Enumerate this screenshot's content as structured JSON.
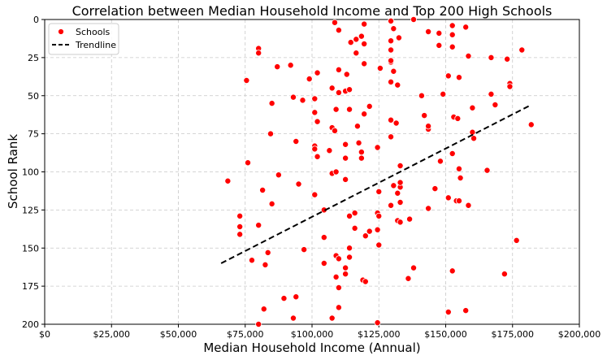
{
  "chart_data": {
    "type": "scatter",
    "title": "Correlation between Median Household Income and Top 200 High Schools",
    "xlabel": "Median Household Income (Annual)",
    "ylabel": "School Rank",
    "xlim": [
      0,
      200000
    ],
    "ylim": [
      200,
      0
    ],
    "y_inverted": true,
    "x_ticks": [
      0,
      25000,
      50000,
      75000,
      100000,
      125000,
      150000,
      175000,
      200000
    ],
    "x_tick_labels": [
      "$0",
      "$25,000",
      "$50,000",
      "$75,000",
      "$100,000",
      "$125,000",
      "$150,000",
      "$175,000",
      "$200,000"
    ],
    "y_ticks": [
      0,
      25,
      50,
      75,
      100,
      125,
      150,
      175,
      200
    ],
    "y_tick_labels": [
      "0",
      "25",
      "50",
      "75",
      "100",
      "125",
      "150",
      "175",
      "200"
    ],
    "grid": true,
    "legend": {
      "position": "top-left",
      "entries": [
        {
          "label": "Schools",
          "marker": "dot",
          "color": "#ff0000"
        },
        {
          "label": "Trendline",
          "marker": "dashed-line",
          "color": "#000000"
        }
      ]
    },
    "colors": {
      "points": "#ff0000",
      "trendline": "#000000"
    },
    "series": [
      {
        "name": "Schools",
        "points": [
          [
            108500,
            2
          ],
          [
            110000,
            7
          ],
          [
            119500,
            3
          ],
          [
            129500,
            1
          ],
          [
            130500,
            6
          ],
          [
            138000,
            0
          ],
          [
            152500,
            4
          ],
          [
            157500,
            5
          ],
          [
            118500,
            11
          ],
          [
            116500,
            13
          ],
          [
            114500,
            15
          ],
          [
            119500,
            16
          ],
          [
            129500,
            14
          ],
          [
            132500,
            12
          ],
          [
            143500,
            8
          ],
          [
            147500,
            9
          ],
          [
            152500,
            10
          ],
          [
            80000,
            19
          ],
          [
            80000,
            22
          ],
          [
            116500,
            22
          ],
          [
            129500,
            20
          ],
          [
            147500,
            17
          ],
          [
            152500,
            18
          ],
          [
            158500,
            24
          ],
          [
            167000,
            25
          ],
          [
            173000,
            26
          ],
          [
            178500,
            20
          ],
          [
            87000,
            31
          ],
          [
            92000,
            30
          ],
          [
            110000,
            33
          ],
          [
            119500,
            29
          ],
          [
            125500,
            32
          ],
          [
            129500,
            28
          ],
          [
            129500,
            27
          ],
          [
            130500,
            34
          ],
          [
            75500,
            40
          ],
          [
            99000,
            39
          ],
          [
            102000,
            35
          ],
          [
            113000,
            36
          ],
          [
            107500,
            45
          ],
          [
            112500,
            47
          ],
          [
            114000,
            46
          ],
          [
            110000,
            48
          ],
          [
            129500,
            41
          ],
          [
            132000,
            43
          ],
          [
            151000,
            37
          ],
          [
            155000,
            38
          ],
          [
            174000,
            42
          ],
          [
            174000,
            44
          ],
          [
            85000,
            55
          ],
          [
            93000,
            51
          ],
          [
            96500,
            53
          ],
          [
            101000,
            52
          ],
          [
            109000,
            59
          ],
          [
            114000,
            59
          ],
          [
            117000,
            70
          ],
          [
            121500,
            57
          ],
          [
            141000,
            50
          ],
          [
            149000,
            49
          ],
          [
            160000,
            58
          ],
          [
            167000,
            49
          ],
          [
            168500,
            56
          ],
          [
            101000,
            61
          ],
          [
            102000,
            67
          ],
          [
            107500,
            71
          ],
          [
            108500,
            73
          ],
          [
            119500,
            62
          ],
          [
            129500,
            66
          ],
          [
            131500,
            68
          ],
          [
            142000,
            63
          ],
          [
            143500,
            72
          ],
          [
            143500,
            70
          ],
          [
            153000,
            64
          ],
          [
            154500,
            65
          ],
          [
            160000,
            74
          ],
          [
            160500,
            78
          ],
          [
            182000,
            69
          ],
          [
            84500,
            75
          ],
          [
            94000,
            80
          ],
          [
            101000,
            83
          ],
          [
            101000,
            85
          ],
          [
            102000,
            90
          ],
          [
            106500,
            86
          ],
          [
            112500,
            82
          ],
          [
            117500,
            81
          ],
          [
            118500,
            87
          ],
          [
            124500,
            84
          ],
          [
            129500,
            77
          ],
          [
            76000,
            94
          ],
          [
            87500,
            102
          ],
          [
            95000,
            108
          ],
          [
            107500,
            101
          ],
          [
            109000,
            100
          ],
          [
            112500,
            105
          ],
          [
            112500,
            91
          ],
          [
            118500,
            91
          ],
          [
            133000,
            96
          ],
          [
            148000,
            93
          ],
          [
            152500,
            88
          ],
          [
            155000,
            98
          ],
          [
            155500,
            104
          ],
          [
            165500,
            99
          ],
          [
            68500,
            106
          ],
          [
            81500,
            112
          ],
          [
            85000,
            121
          ],
          [
            101000,
            115
          ],
          [
            104500,
            125
          ],
          [
            125000,
            113
          ],
          [
            129500,
            122
          ],
          [
            130500,
            109
          ],
          [
            132000,
            114
          ],
          [
            133000,
            110
          ],
          [
            133000,
            107
          ],
          [
            133000,
            120
          ],
          [
            146000,
            111
          ],
          [
            151000,
            117
          ],
          [
            154000,
            119
          ],
          [
            155000,
            119
          ],
          [
            158500,
            122
          ],
          [
            73000,
            129
          ],
          [
            73000,
            136
          ],
          [
            73000,
            141
          ],
          [
            80000,
            135
          ],
          [
            104500,
            143
          ],
          [
            114000,
            129
          ],
          [
            116000,
            127
          ],
          [
            116000,
            137
          ],
          [
            120000,
            142
          ],
          [
            121500,
            139
          ],
          [
            124500,
            127
          ],
          [
            125000,
            129
          ],
          [
            124500,
            138
          ],
          [
            125000,
            148
          ],
          [
            132000,
            132
          ],
          [
            133000,
            133
          ],
          [
            136500,
            131
          ],
          [
            143500,
            124
          ],
          [
            77500,
            158
          ],
          [
            82500,
            161
          ],
          [
            83500,
            153
          ],
          [
            97000,
            151
          ],
          [
            104500,
            160
          ],
          [
            109000,
            155
          ],
          [
            110000,
            157
          ],
          [
            112500,
            163
          ],
          [
            112500,
            167
          ],
          [
            114000,
            150
          ],
          [
            114000,
            156
          ],
          [
            109000,
            169
          ],
          [
            110000,
            176
          ],
          [
            119000,
            171
          ],
          [
            120000,
            172
          ],
          [
            136000,
            170
          ],
          [
            138000,
            163
          ],
          [
            152500,
            165
          ],
          [
            172000,
            167
          ],
          [
            176500,
            145
          ],
          [
            82000,
            190
          ],
          [
            89500,
            183
          ],
          [
            94000,
            182
          ],
          [
            93000,
            196
          ],
          [
            80000,
            200
          ],
          [
            107500,
            196
          ],
          [
            110000,
            189
          ],
          [
            124500,
            199
          ],
          [
            151000,
            192
          ],
          [
            157500,
            191
          ]
        ]
      },
      {
        "name": "Trendline",
        "style": "dashed",
        "points": [
          [
            66000,
            160
          ],
          [
            182000,
            56
          ]
        ]
      }
    ]
  }
}
